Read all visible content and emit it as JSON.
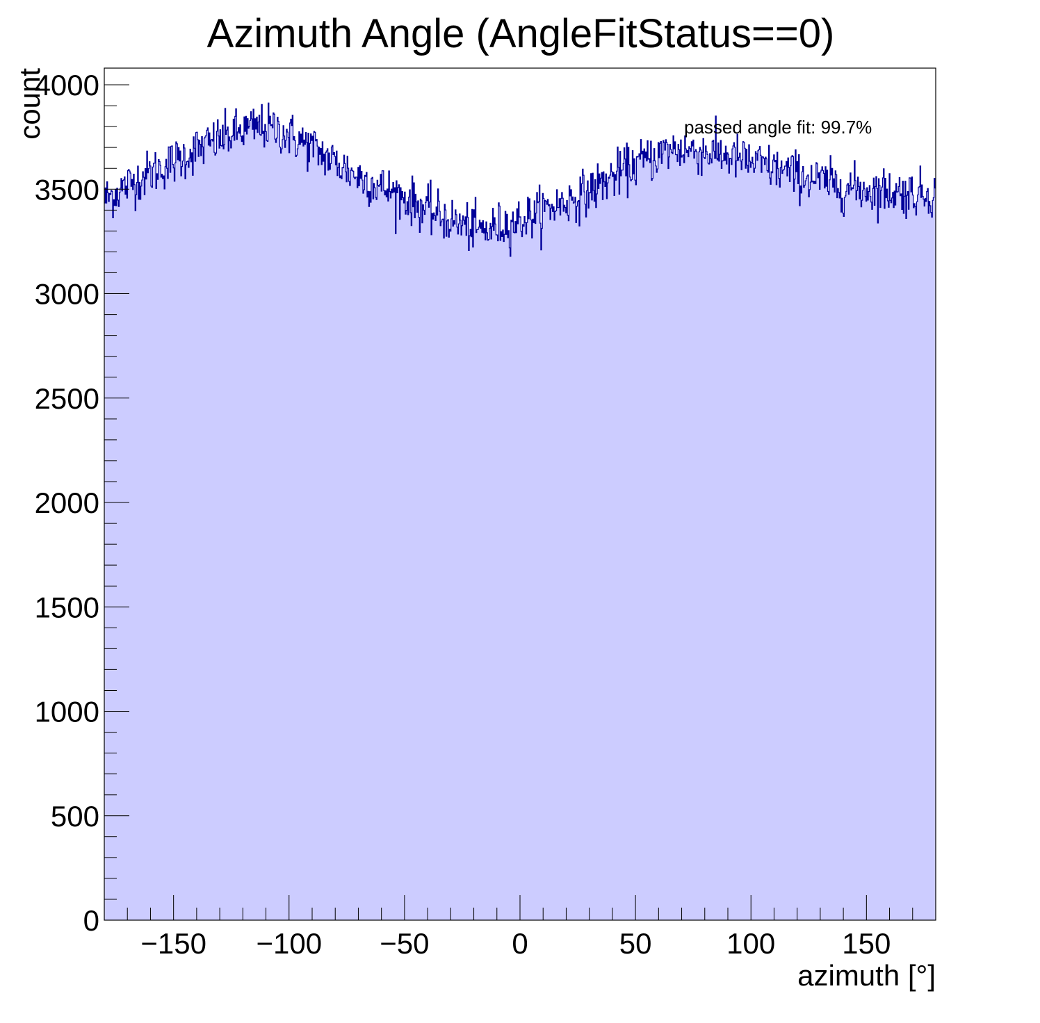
{
  "chart_data": {
    "type": "histogram",
    "title": "Azimuth Angle (AngleFitStatus==0)",
    "xlabel": "azimuth [°]",
    "ylabel": "count",
    "xlim": [
      -180,
      180
    ],
    "ylim": [
      0,
      4080
    ],
    "x_ticks": [
      -150,
      -100,
      -50,
      0,
      50,
      100,
      150
    ],
    "x_tick_labels": [
      "−150",
      "−100",
      "−50",
      "0",
      "50",
      "100",
      "150"
    ],
    "y_ticks": [
      0,
      500,
      1000,
      1500,
      2000,
      2500,
      3000,
      3500,
      4000
    ],
    "y_tick_labels": [
      "0",
      "500",
      "1000",
      "1500",
      "2000",
      "2500",
      "3000",
      "3500",
      "4000"
    ],
    "grid": false,
    "annotation": "passed angle fit: 99.7%",
    "colors": {
      "fill": "#ccccff",
      "line": "#000099",
      "axis": "#000000"
    },
    "envelope": {
      "x": [
        -180,
        -170,
        -160,
        -150,
        -140,
        -130,
        -120,
        -112,
        -105,
        -100,
        -90,
        -80,
        -70,
        -60,
        -50,
        -40,
        -30,
        -20,
        -15,
        -10,
        0,
        10,
        20,
        30,
        40,
        50,
        60,
        65,
        70,
        80,
        90,
        100,
        110,
        120,
        130,
        140,
        150,
        160,
        170,
        180
      ],
      "values": [
        3450,
        3520,
        3580,
        3630,
        3690,
        3740,
        3780,
        3800,
        3785,
        3760,
        3700,
        3630,
        3560,
        3510,
        3460,
        3400,
        3350,
        3310,
        3300,
        3320,
        3350,
        3400,
        3440,
        3490,
        3560,
        3620,
        3665,
        3690,
        3690,
        3680,
        3660,
        3630,
        3600,
        3570,
        3540,
        3510,
        3500,
        3490,
        3480,
        3480
      ]
    },
    "bins": 1000,
    "noise_amplitude": 55
  }
}
